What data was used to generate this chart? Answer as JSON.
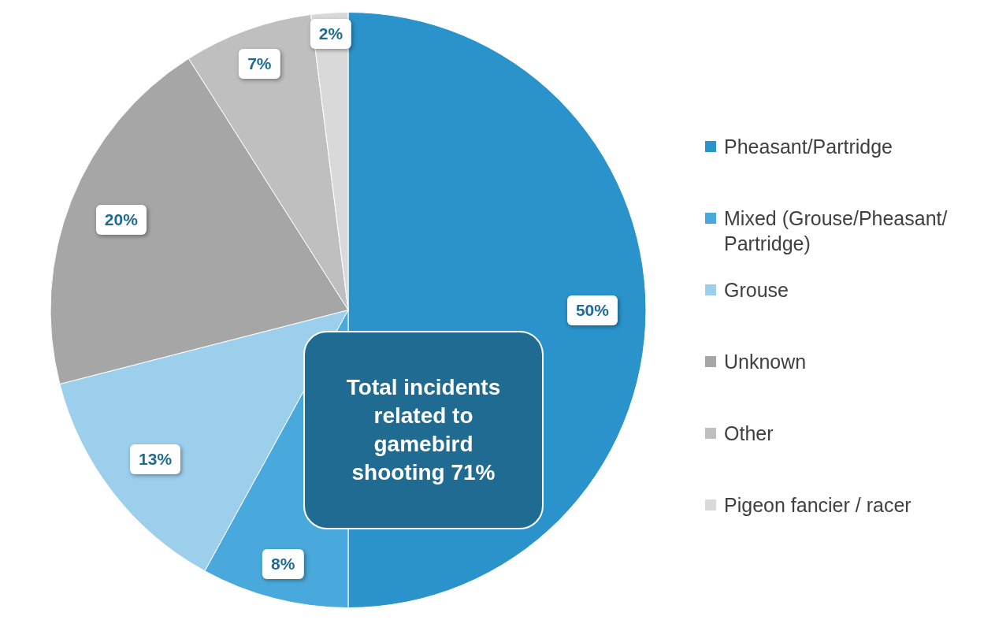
{
  "chart_data": {
    "type": "pie",
    "categories": [
      "Pheasant/Partridge",
      "Mixed (Grouse/Pheasant/ Partridge)",
      "Grouse",
      "Unknown",
      "Other",
      "Pigeon fancier / racer"
    ],
    "values": [
      50,
      8,
      13,
      20,
      7,
      2
    ],
    "colors": [
      "#2a93cb",
      "#4aa9dc",
      "#9ccfec",
      "#a6a6a6",
      "#bfbfbf",
      "#d9d9d9"
    ],
    "value_labels": [
      "50%",
      "8%",
      "13%",
      "20%",
      "7%",
      "2%"
    ],
    "legend": "right",
    "annotations": [
      "Total incidents related to gamebird shooting 71%"
    ]
  }
}
